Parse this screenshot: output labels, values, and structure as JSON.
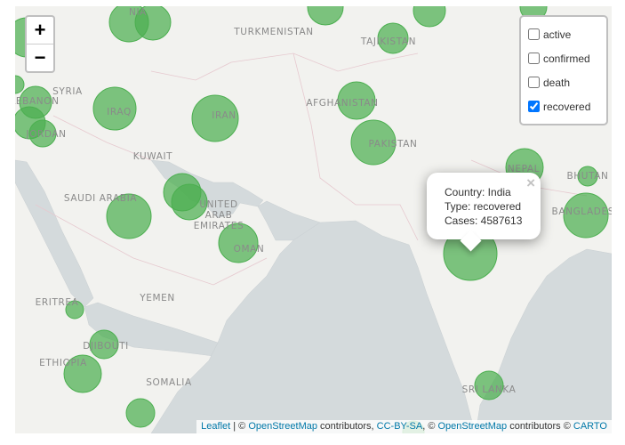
{
  "zoom_control": {
    "zoom_in": "+",
    "zoom_out": "−"
  },
  "layer_control": {
    "layers": [
      {
        "label": "active",
        "checked": false
      },
      {
        "label": "confirmed",
        "checked": false
      },
      {
        "label": "death",
        "checked": false
      },
      {
        "label": "recovered",
        "checked": true
      }
    ]
  },
  "popup": {
    "close": "×",
    "lines": [
      "Country: India",
      "Type: recovered",
      "Cases: 4587613"
    ]
  },
  "map_labels": [
    "UZBEKISTAN",
    "TURKMENISTAN",
    "TAJIKISTAN",
    "NIA",
    "SYRIA",
    "LEBANON",
    "JORDAN",
    "IRAQ",
    "IRAN",
    "AFGHANISTAN",
    "PAKISTAN",
    "KUWAIT",
    "SAUDI ARABIA",
    "NEPAL",
    "BHUTAN",
    "BANGLADESH",
    "UNITED ARAB EMIRATES",
    "OMAN",
    "YEMEN",
    "ERITREA",
    "DJIBOUTI",
    "ETHIOPIA",
    "SOMALIA",
    "SRI LANKA"
  ],
  "attribution": [
    {
      "text": "Leaflet",
      "link": true
    },
    {
      "text": " | © ",
      "link": false
    },
    {
      "text": "OpenStreetMap",
      "link": true
    },
    {
      "text": " contributors, ",
      "link": false
    },
    {
      "text": "CC-BY-SA",
      "link": true
    },
    {
      "text": ", © ",
      "link": false
    },
    {
      "text": "OpenStreetMap",
      "link": true
    },
    {
      "text": " contributors © ",
      "link": false
    },
    {
      "text": "CARTO",
      "link": true
    }
  ]
}
